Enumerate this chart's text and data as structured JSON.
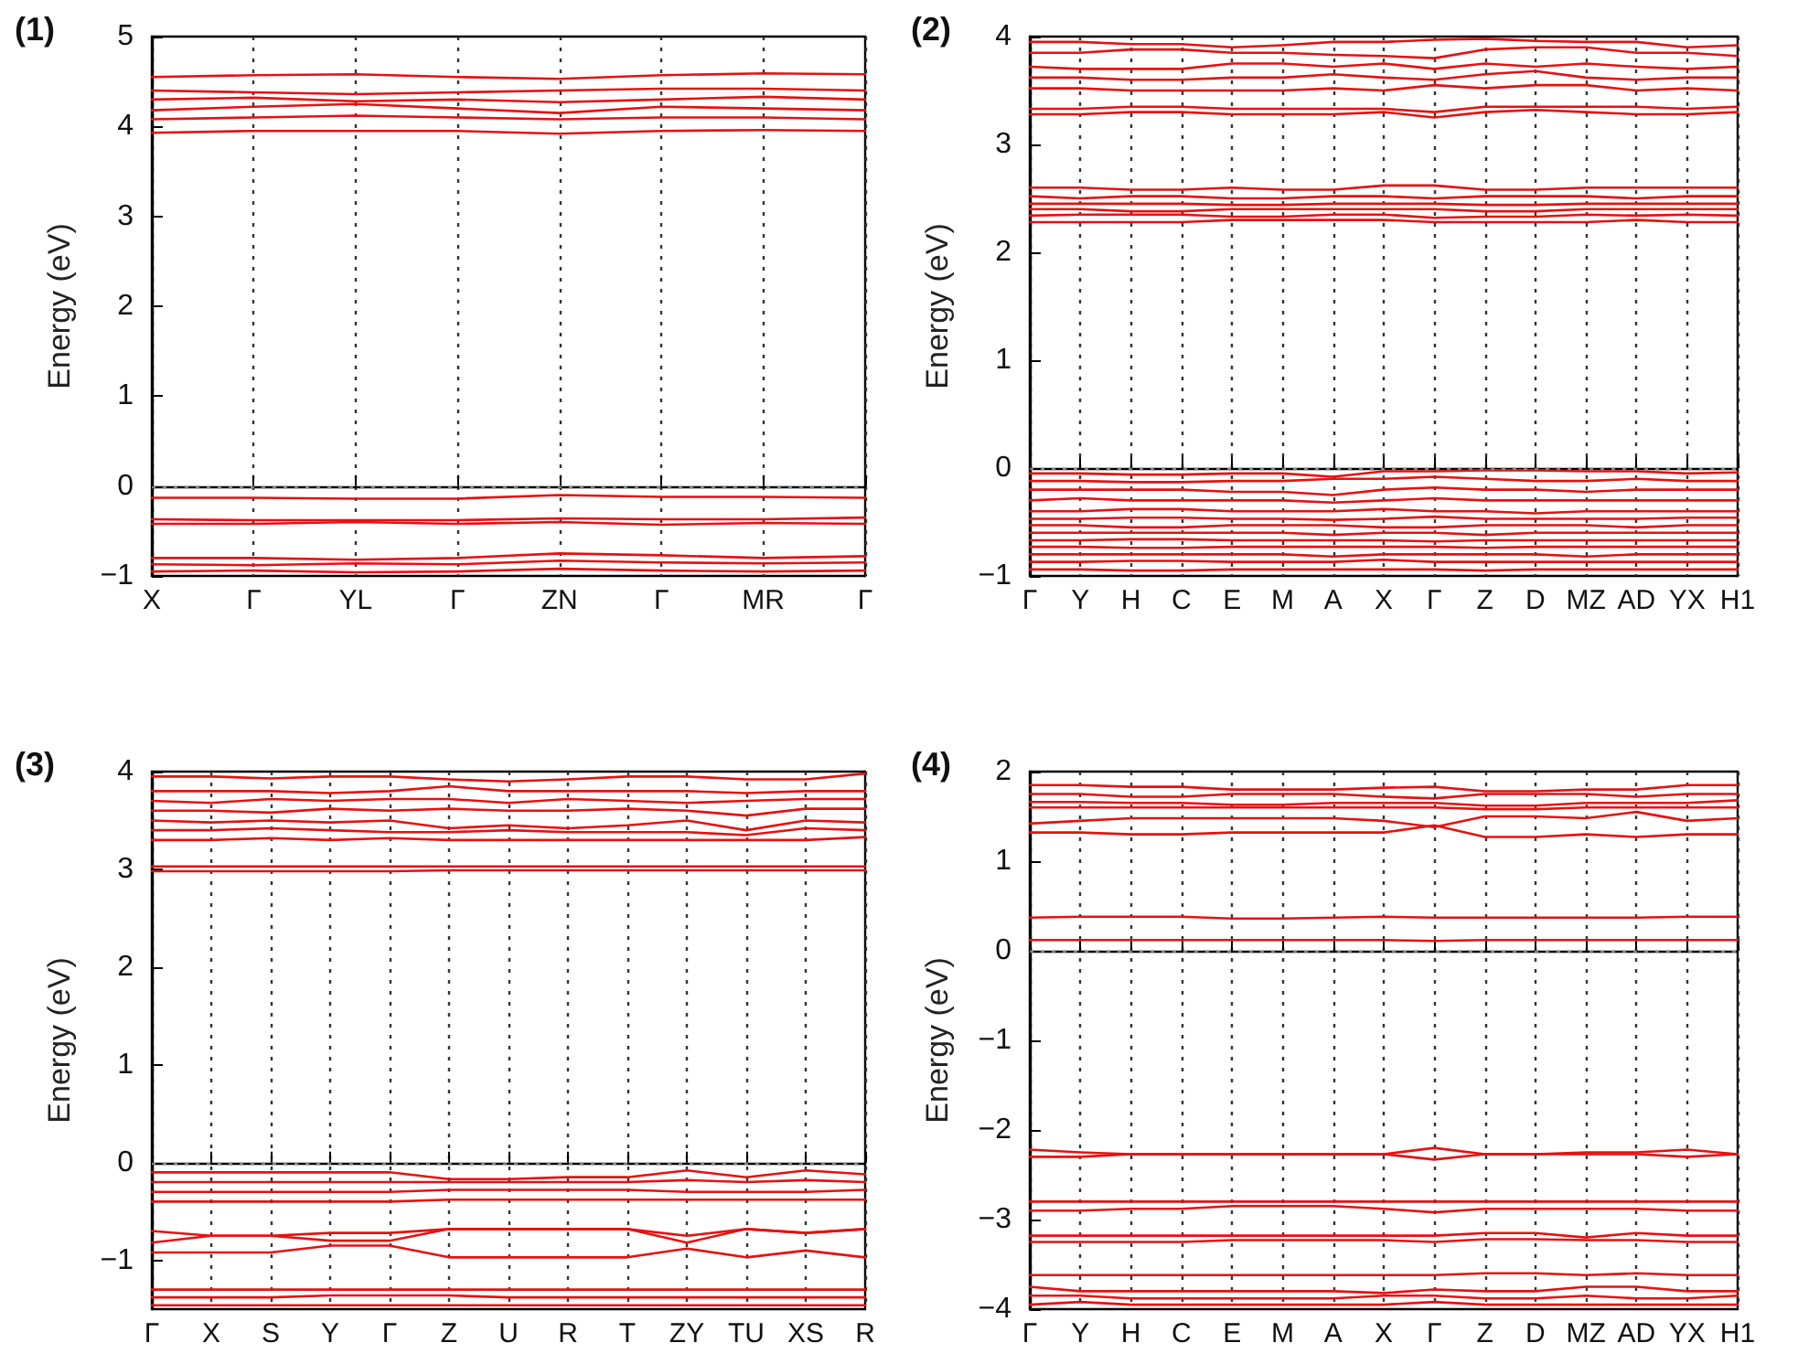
{
  "chart_data": [
    {
      "type": "line",
      "title": "(1)",
      "ylabel": "Energy (eV)",
      "color": "#e81010",
      "marker": "none",
      "line_style": "solid",
      "grid": "x",
      "ylim": [
        -1,
        5
      ],
      "yticks": [
        -1,
        0,
        1,
        2,
        3,
        4,
        5
      ],
      "categories": [
        "X",
        "Γ",
        "YL",
        "Γ",
        "ZN",
        "Γ",
        "MR",
        "Γ"
      ],
      "ref_lines": [
        {
          "axis": "y",
          "value": 0,
          "color": "#808080",
          "line_style": "dotted"
        }
      ],
      "series": [
        {
          "values": [
            4.55,
            4.57,
            4.58,
            4.55,
            4.53,
            4.57,
            4.59,
            4.58
          ]
        },
        {
          "values": [
            4.4,
            4.38,
            4.36,
            4.38,
            4.4,
            4.42,
            4.42,
            4.4
          ]
        },
        {
          "values": [
            4.3,
            4.32,
            4.28,
            4.3,
            4.27,
            4.3,
            4.33,
            4.3
          ]
        },
        {
          "values": [
            4.18,
            4.22,
            4.25,
            4.2,
            4.15,
            4.22,
            4.2,
            4.18
          ]
        },
        {
          "values": [
            4.08,
            4.1,
            4.12,
            4.1,
            4.08,
            4.1,
            4.1,
            4.08
          ]
        },
        {
          "values": [
            3.93,
            3.95,
            3.95,
            3.95,
            3.92,
            3.95,
            3.96,
            3.95
          ]
        },
        {
          "values": [
            -0.13,
            -0.13,
            -0.14,
            -0.14,
            -0.1,
            -0.12,
            -0.12,
            -0.13
          ]
        },
        {
          "values": [
            -0.37,
            -0.38,
            -0.38,
            -0.38,
            -0.36,
            -0.37,
            -0.37,
            -0.35
          ]
        },
        {
          "values": [
            -0.42,
            -0.42,
            -0.4,
            -0.42,
            -0.4,
            -0.43,
            -0.41,
            -0.42
          ]
        },
        {
          "values": [
            -0.8,
            -0.8,
            -0.82,
            -0.8,
            -0.75,
            -0.77,
            -0.8,
            -0.78
          ]
        },
        {
          "values": [
            -0.87,
            -0.88,
            -0.86,
            -0.87,
            -0.83,
            -0.85,
            -0.86,
            -0.85
          ]
        },
        {
          "values": [
            -0.95,
            -0.94,
            -0.96,
            -0.95,
            -0.92,
            -0.94,
            -0.95,
            -0.94
          ]
        }
      ]
    },
    {
      "type": "line",
      "title": "(2)",
      "ylabel": "Energy (eV)",
      "color": "#e81010",
      "marker": "none",
      "line_style": "solid",
      "grid": "x",
      "ylim": [
        -1,
        4
      ],
      "yticks": [
        -1,
        0,
        1,
        2,
        3,
        4
      ],
      "categories": [
        "Γ",
        "Y",
        "H",
        "C",
        "E",
        "M",
        "A",
        "X",
        "Γ",
        "Z",
        "D",
        "MZ",
        "AD",
        "YX",
        "H1"
      ],
      "ref_lines": [
        {
          "axis": "y",
          "value": 0,
          "color": "#808080",
          "line_style": "dotted"
        }
      ],
      "series": [
        {
          "values": [
            3.95,
            3.95,
            3.93,
            3.93,
            3.9,
            3.92,
            3.95,
            3.95,
            3.97,
            3.98,
            3.96,
            3.95,
            3.95,
            3.9,
            3.92
          ]
        },
        {
          "values": [
            3.85,
            3.85,
            3.88,
            3.88,
            3.85,
            3.85,
            3.83,
            3.82,
            3.8,
            3.88,
            3.9,
            3.9,
            3.85,
            3.85,
            3.82
          ]
        },
        {
          "values": [
            3.72,
            3.7,
            3.7,
            3.7,
            3.75,
            3.75,
            3.72,
            3.75,
            3.7,
            3.75,
            3.72,
            3.75,
            3.72,
            3.7,
            3.72
          ]
        },
        {
          "values": [
            3.62,
            3.62,
            3.6,
            3.6,
            3.62,
            3.62,
            3.65,
            3.62,
            3.6,
            3.65,
            3.68,
            3.62,
            3.6,
            3.62,
            3.62
          ]
        },
        {
          "values": [
            3.52,
            3.52,
            3.5,
            3.5,
            3.5,
            3.5,
            3.52,
            3.5,
            3.55,
            3.52,
            3.55,
            3.55,
            3.5,
            3.52,
            3.5
          ]
        },
        {
          "values": [
            3.33,
            3.33,
            3.35,
            3.35,
            3.33,
            3.33,
            3.33,
            3.33,
            3.3,
            3.35,
            3.35,
            3.35,
            3.35,
            3.33,
            3.35
          ]
        },
        {
          "values": [
            3.28,
            3.28,
            3.3,
            3.3,
            3.28,
            3.28,
            3.28,
            3.3,
            3.25,
            3.3,
            3.32,
            3.3,
            3.28,
            3.28,
            3.3
          ]
        },
        {
          "values": [
            2.6,
            2.6,
            2.58,
            2.58,
            2.6,
            2.58,
            2.58,
            2.62,
            2.62,
            2.58,
            2.58,
            2.6,
            2.6,
            2.6,
            2.6
          ]
        },
        {
          "values": [
            2.52,
            2.5,
            2.52,
            2.52,
            2.5,
            2.5,
            2.52,
            2.52,
            2.5,
            2.52,
            2.52,
            2.52,
            2.5,
            2.52,
            2.52
          ]
        },
        {
          "values": [
            2.45,
            2.45,
            2.45,
            2.45,
            2.44,
            2.44,
            2.45,
            2.45,
            2.45,
            2.44,
            2.44,
            2.45,
            2.45,
            2.45,
            2.45
          ]
        },
        {
          "values": [
            2.4,
            2.4,
            2.38,
            2.38,
            2.4,
            2.4,
            2.4,
            2.4,
            2.4,
            2.38,
            2.38,
            2.4,
            2.4,
            2.4,
            2.4
          ]
        },
        {
          "values": [
            2.34,
            2.35,
            2.35,
            2.35,
            2.33,
            2.33,
            2.35,
            2.35,
            2.32,
            2.33,
            2.33,
            2.35,
            2.34,
            2.35,
            2.34
          ]
        },
        {
          "values": [
            2.28,
            2.28,
            2.28,
            2.28,
            2.3,
            2.3,
            2.3,
            2.3,
            2.28,
            2.28,
            2.28,
            2.28,
            2.3,
            2.28,
            2.28
          ]
        },
        {
          "values": [
            -0.05,
            -0.05,
            -0.06,
            -0.06,
            -0.05,
            -0.05,
            -0.08,
            -0.03,
            -0.03,
            -0.02,
            -0.02,
            -0.03,
            -0.03,
            -0.05,
            -0.04
          ]
        },
        {
          "values": [
            -0.12,
            -0.12,
            -0.13,
            -0.13,
            -0.12,
            -0.12,
            -0.1,
            -0.1,
            -0.08,
            -0.1,
            -0.12,
            -0.12,
            -0.1,
            -0.12,
            -0.12
          ]
        },
        {
          "values": [
            -0.2,
            -0.2,
            -0.2,
            -0.2,
            -0.22,
            -0.22,
            -0.25,
            -0.2,
            -0.18,
            -0.2,
            -0.2,
            -0.22,
            -0.2,
            -0.2,
            -0.2
          ]
        },
        {
          "values": [
            -0.3,
            -0.28,
            -0.3,
            -0.3,
            -0.3,
            -0.3,
            -0.32,
            -0.3,
            -0.28,
            -0.3,
            -0.3,
            -0.3,
            -0.3,
            -0.3,
            -0.3
          ]
        },
        {
          "values": [
            -0.4,
            -0.4,
            -0.38,
            -0.38,
            -0.4,
            -0.4,
            -0.4,
            -0.38,
            -0.4,
            -0.4,
            -0.42,
            -0.4,
            -0.4,
            -0.4,
            -0.4
          ]
        },
        {
          "values": [
            -0.47,
            -0.47,
            -0.46,
            -0.46,
            -0.47,
            -0.47,
            -0.48,
            -0.47,
            -0.45,
            -0.47,
            -0.47,
            -0.47,
            -0.47,
            -0.46,
            -0.46
          ]
        },
        {
          "values": [
            -0.53,
            -0.53,
            -0.55,
            -0.55,
            -0.53,
            -0.53,
            -0.53,
            -0.55,
            -0.55,
            -0.53,
            -0.53,
            -0.53,
            -0.55,
            -0.53,
            -0.53
          ]
        },
        {
          "values": [
            -0.6,
            -0.6,
            -0.6,
            -0.6,
            -0.6,
            -0.6,
            -0.62,
            -0.6,
            -0.6,
            -0.62,
            -0.6,
            -0.6,
            -0.6,
            -0.6,
            -0.6
          ]
        },
        {
          "values": [
            -0.67,
            -0.67,
            -0.66,
            -0.66,
            -0.67,
            -0.67,
            -0.67,
            -0.67,
            -0.68,
            -0.67,
            -0.67,
            -0.67,
            -0.67,
            -0.67,
            -0.67
          ]
        },
        {
          "values": [
            -0.73,
            -0.73,
            -0.74,
            -0.74,
            -0.73,
            -0.73,
            -0.73,
            -0.73,
            -0.73,
            -0.74,
            -0.73,
            -0.73,
            -0.73,
            -0.73,
            -0.73
          ]
        },
        {
          "values": [
            -0.8,
            -0.8,
            -0.8,
            -0.8,
            -0.8,
            -0.8,
            -0.82,
            -0.8,
            -0.8,
            -0.8,
            -0.8,
            -0.82,
            -0.8,
            -0.8,
            -0.8
          ]
        },
        {
          "values": [
            -0.87,
            -0.87,
            -0.86,
            -0.86,
            -0.87,
            -0.87,
            -0.87,
            -0.85,
            -0.87,
            -0.87,
            -0.87,
            -0.87,
            -0.87,
            -0.87,
            -0.87
          ]
        },
        {
          "values": [
            -0.94,
            -0.94,
            -0.95,
            -0.95,
            -0.94,
            -0.94,
            -0.94,
            -0.94,
            -0.94,
            -0.95,
            -0.94,
            -0.94,
            -0.94,
            -0.94,
            -0.94
          ]
        }
      ]
    },
    {
      "type": "line",
      "title": "(3)",
      "ylabel": "Energy (eV)",
      "color": "#e81010",
      "marker": "none",
      "line_style": "solid",
      "grid": "x",
      "ylim": [
        -1.5,
        4
      ],
      "yticks": [
        -1,
        0,
        1,
        2,
        3,
        4
      ],
      "categories": [
        "Γ",
        "X",
        "S",
        "Y",
        "Γ",
        "Z",
        "U",
        "R",
        "T",
        "ZY",
        "TU",
        "XS",
        "R"
      ],
      "ref_lines": [
        {
          "axis": "y",
          "value": 0,
          "color": "#808080",
          "line_style": "dotted"
        }
      ],
      "series": [
        {
          "values": [
            3.95,
            3.95,
            3.93,
            3.95,
            3.95,
            3.92,
            3.9,
            3.92,
            3.95,
            3.95,
            3.92,
            3.92,
            3.98
          ]
        },
        {
          "values": [
            3.8,
            3.8,
            3.8,
            3.78,
            3.8,
            3.85,
            3.8,
            3.8,
            3.8,
            3.8,
            3.78,
            3.8,
            3.8
          ]
        },
        {
          "values": [
            3.7,
            3.68,
            3.72,
            3.7,
            3.72,
            3.72,
            3.68,
            3.72,
            3.7,
            3.68,
            3.7,
            3.72,
            3.72
          ]
        },
        {
          "values": [
            3.6,
            3.6,
            3.58,
            3.62,
            3.6,
            3.62,
            3.6,
            3.6,
            3.62,
            3.6,
            3.55,
            3.62,
            3.62
          ]
        },
        {
          "values": [
            3.5,
            3.48,
            3.5,
            3.48,
            3.5,
            3.42,
            3.45,
            3.42,
            3.45,
            3.5,
            3.4,
            3.5,
            3.48
          ]
        },
        {
          "values": [
            3.4,
            3.4,
            3.42,
            3.4,
            3.38,
            3.38,
            3.4,
            3.38,
            3.38,
            3.38,
            3.35,
            3.42,
            3.4
          ]
        },
        {
          "values": [
            3.3,
            3.3,
            3.32,
            3.3,
            3.32,
            3.3,
            3.3,
            3.3,
            3.3,
            3.3,
            3.3,
            3.3,
            3.33
          ]
        },
        {
          "values": [
            3.03,
            3.03,
            3.03,
            3.03,
            3.03,
            3.03,
            3.03,
            3.03,
            3.03,
            3.03,
            3.03,
            3.03,
            3.03
          ]
        },
        {
          "values": [
            2.98,
            2.98,
            2.98,
            2.98,
            2.98,
            2.99,
            2.99,
            2.99,
            2.99,
            2.99,
            2.99,
            2.99,
            2.99
          ]
        },
        {
          "values": [
            -0.1,
            -0.1,
            -0.1,
            -0.1,
            -0.1,
            -0.17,
            -0.17,
            -0.15,
            -0.15,
            -0.08,
            -0.15,
            -0.08,
            -0.12
          ]
        },
        {
          "values": [
            -0.2,
            -0.2,
            -0.2,
            -0.2,
            -0.2,
            -0.2,
            -0.2,
            -0.2,
            -0.2,
            -0.18,
            -0.2,
            -0.18,
            -0.2
          ]
        },
        {
          "values": [
            -0.3,
            -0.3,
            -0.3,
            -0.3,
            -0.3,
            -0.28,
            -0.28,
            -0.28,
            -0.28,
            -0.3,
            -0.3,
            -0.3,
            -0.28
          ]
        },
        {
          "values": [
            -0.4,
            -0.4,
            -0.4,
            -0.4,
            -0.4,
            -0.38,
            -0.38,
            -0.38,
            -0.38,
            -0.38,
            -0.38,
            -0.38,
            -0.38
          ]
        },
        {
          "values": [
            -0.7,
            -0.75,
            -0.75,
            -0.72,
            -0.72,
            -0.68,
            -0.68,
            -0.68,
            -0.68,
            -0.75,
            -0.68,
            -0.72,
            -0.68
          ]
        },
        {
          "values": [
            -0.82,
            -0.75,
            -0.75,
            -0.8,
            -0.8,
            -0.68,
            -0.68,
            -0.68,
            -0.68,
            -0.82,
            -0.68,
            -0.72,
            -0.68
          ]
        },
        {
          "values": [
            -0.92,
            -0.92,
            -0.92,
            -0.85,
            -0.85,
            -0.97,
            -0.97,
            -0.97,
            -0.97,
            -0.88,
            -0.97,
            -0.9,
            -0.97
          ]
        },
        {
          "values": [
            -1.3,
            -1.3,
            -1.3,
            -1.3,
            -1.3,
            -1.3,
            -1.3,
            -1.3,
            -1.3,
            -1.3,
            -1.3,
            -1.3,
            -1.3
          ]
        },
        {
          "values": [
            -1.38,
            -1.38,
            -1.38,
            -1.36,
            -1.36,
            -1.36,
            -1.38,
            -1.38,
            -1.38,
            -1.38,
            -1.38,
            -1.38,
            -1.38
          ]
        },
        {
          "values": [
            -1.46,
            -1.46,
            -1.46,
            -1.46,
            -1.46,
            -1.46,
            -1.46,
            -1.46,
            -1.46,
            -1.46,
            -1.46,
            -1.46,
            -1.46
          ]
        }
      ]
    },
    {
      "type": "line",
      "title": "(4)",
      "ylabel": "Energy (eV)",
      "color": "#e81010",
      "marker": "none",
      "line_style": "solid",
      "grid": "x",
      "ylim": [
        -4,
        2
      ],
      "yticks": [
        -4,
        -3,
        -2,
        -1,
        0,
        1,
        2
      ],
      "categories": [
        "Γ",
        "Y",
        "H",
        "C",
        "E",
        "M",
        "A",
        "X",
        "Γ",
        "Z",
        "D",
        "MZ",
        "AD",
        "YX",
        "H1"
      ],
      "ref_lines": [
        {
          "axis": "y",
          "value": 0,
          "color": "#808080",
          "line_style": "dotted"
        }
      ],
      "series": [
        {
          "values": [
            1.85,
            1.85,
            1.83,
            1.83,
            1.8,
            1.8,
            1.8,
            1.82,
            1.83,
            1.78,
            1.78,
            1.8,
            1.8,
            1.85,
            1.85
          ]
        },
        {
          "values": [
            1.75,
            1.75,
            1.72,
            1.72,
            1.75,
            1.75,
            1.75,
            1.72,
            1.7,
            1.75,
            1.75,
            1.75,
            1.72,
            1.75,
            1.75
          ]
        },
        {
          "values": [
            1.66,
            1.66,
            1.65,
            1.65,
            1.63,
            1.63,
            1.65,
            1.65,
            1.65,
            1.62,
            1.62,
            1.65,
            1.65,
            1.65,
            1.68
          ]
        },
        {
          "values": [
            1.6,
            1.6,
            1.6,
            1.6,
            1.6,
            1.6,
            1.6,
            1.6,
            1.6,
            1.58,
            1.58,
            1.6,
            1.6,
            1.6,
            1.6
          ]
        },
        {
          "values": [
            1.42,
            1.45,
            1.48,
            1.48,
            1.48,
            1.48,
            1.48,
            1.45,
            1.38,
            1.5,
            1.5,
            1.48,
            1.55,
            1.45,
            1.48
          ]
        },
        {
          "values": [
            1.32,
            1.32,
            1.3,
            1.3,
            1.32,
            1.32,
            1.32,
            1.32,
            1.4,
            1.27,
            1.27,
            1.3,
            1.27,
            1.3,
            1.3
          ]
        },
        {
          "values": [
            0.37,
            0.38,
            0.38,
            0.38,
            0.36,
            0.36,
            0.37,
            0.38,
            0.37,
            0.37,
            0.37,
            0.37,
            0.37,
            0.38,
            0.38
          ]
        },
        {
          "values": [
            0.12,
            0.12,
            0.12,
            0.12,
            0.12,
            0.12,
            0.12,
            0.12,
            0.11,
            0.12,
            0.12,
            0.12,
            0.12,
            0.12,
            0.12
          ]
        },
        {
          "values": [
            -2.22,
            -2.25,
            -2.27,
            -2.27,
            -2.27,
            -2.27,
            -2.27,
            -2.27,
            -2.2,
            -2.27,
            -2.27,
            -2.25,
            -2.25,
            -2.22,
            -2.27
          ]
        },
        {
          "values": [
            -2.3,
            -2.3,
            -2.27,
            -2.27,
            -2.27,
            -2.27,
            -2.27,
            -2.27,
            -2.33,
            -2.27,
            -2.27,
            -2.27,
            -2.27,
            -2.3,
            -2.27
          ]
        },
        {
          "values": [
            -2.8,
            -2.8,
            -2.8,
            -2.8,
            -2.8,
            -2.8,
            -2.8,
            -2.8,
            -2.8,
            -2.8,
            -2.8,
            -2.8,
            -2.8,
            -2.8,
            -2.8
          ]
        },
        {
          "values": [
            -2.9,
            -2.9,
            -2.88,
            -2.88,
            -2.85,
            -2.85,
            -2.85,
            -2.88,
            -2.92,
            -2.88,
            -2.88,
            -2.88,
            -2.88,
            -2.9,
            -2.9
          ]
        },
        {
          "values": [
            -3.18,
            -3.18,
            -3.18,
            -3.18,
            -3.18,
            -3.18,
            -3.18,
            -3.18,
            -3.18,
            -3.15,
            -3.15,
            -3.2,
            -3.15,
            -3.18,
            -3.18
          ]
        },
        {
          "values": [
            -3.25,
            -3.25,
            -3.25,
            -3.25,
            -3.23,
            -3.23,
            -3.23,
            -3.23,
            -3.25,
            -3.22,
            -3.22,
            -3.23,
            -3.23,
            -3.25,
            -3.25
          ]
        },
        {
          "values": [
            -3.62,
            -3.62,
            -3.62,
            -3.62,
            -3.62,
            -3.62,
            -3.62,
            -3.62,
            -3.62,
            -3.6,
            -3.6,
            -3.62,
            -3.6,
            -3.62,
            -3.62
          ]
        },
        {
          "values": [
            -3.75,
            -3.8,
            -3.8,
            -3.8,
            -3.8,
            -3.8,
            -3.8,
            -3.82,
            -3.78,
            -3.8,
            -3.8,
            -3.75,
            -3.75,
            -3.8,
            -3.8
          ]
        },
        {
          "values": [
            -3.85,
            -3.85,
            -3.88,
            -3.88,
            -3.88,
            -3.88,
            -3.88,
            -3.85,
            -3.85,
            -3.88,
            -3.88,
            -3.85,
            -3.88,
            -3.88,
            -3.85
          ]
        },
        {
          "values": [
            -3.95,
            -3.92,
            -3.95,
            -3.95,
            -3.95,
            -3.95,
            -3.95,
            -3.95,
            -3.92,
            -3.95,
            -3.95,
            -3.95,
            -3.95,
            -3.95,
            -3.95
          ]
        }
      ]
    }
  ]
}
